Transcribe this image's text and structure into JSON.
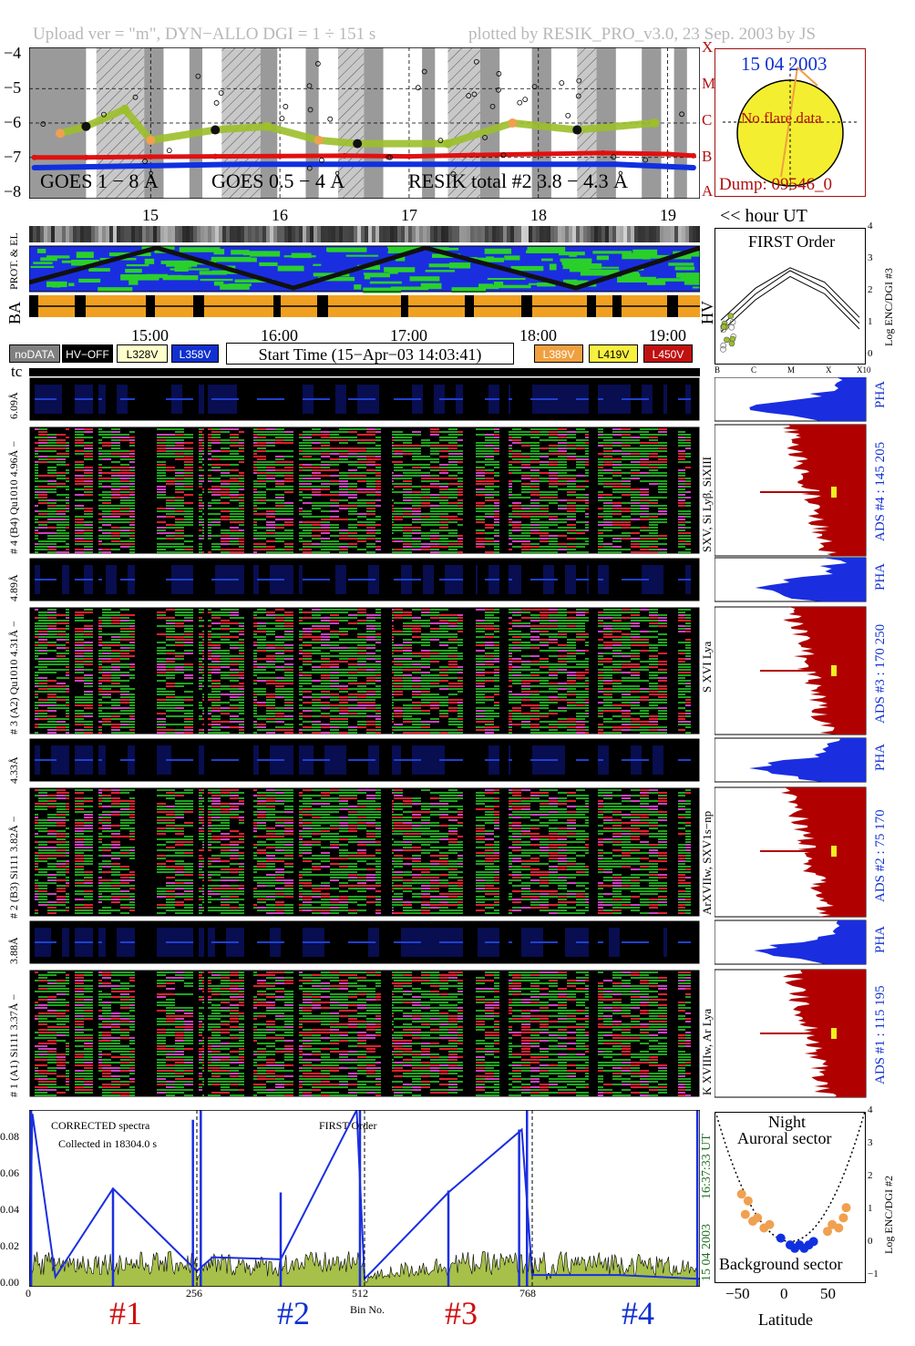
{
  "header": {
    "upload": "Upload ver = \"m\", DYN−ALLO DGI =  1 ÷ 151 s",
    "plotted": "plotted by RESIK_PRO_v3.0, 23 Sep. 2003 by JS"
  },
  "colors": {
    "goes_long": "#e01010",
    "goes_short": "#1030e0",
    "resik_green": "#9cbf2a",
    "resik_orange": "#f0a050",
    "gray_band": "#9a9a9a",
    "hatch_band": "#c8c8c8",
    "sun_fill": "#f4ee30",
    "spectrum_fill": "#a6c04a",
    "spectrum_blue": "#1a2ee0",
    "ads_red": "#b00000",
    "pha_blue": "#1a2ee0",
    "legend_nodata": "#808080",
    "legend_hvoff": "#000000",
    "legend_l328": "#ffffcc",
    "legend_l358": "#1030d0",
    "legend_l389": "#f0a040",
    "legend_l419": "#f8f040",
    "legend_l450": "#c01010"
  },
  "goes_panel": {
    "y_ticks": [
      "−4",
      "−5",
      "−6",
      "−7",
      "−8"
    ],
    "class_letters": [
      "X",
      "M",
      "C",
      "B",
      "A"
    ],
    "label_goes18": "GOES 1 − 8 Å",
    "label_goes05": "GOES 0.5 − 4 Å",
    "label_resik": "RESIK total #2  3.8 − 4.3 Å"
  },
  "sun_panel": {
    "date": "15 04 2003",
    "flare_text": "No flare data",
    "dump_text": "Dump: 09546_0"
  },
  "hour_axis": {
    "ticks": [
      "15",
      "16",
      "17",
      "18",
      "19"
    ],
    "label": "<< hour UT"
  },
  "orbit_panel": {
    "label_prot": "PROT. & EL",
    "label_ba": "BA"
  },
  "time_axis": {
    "ticks": [
      "15:00",
      "16:00",
      "17:00",
      "18:00",
      "19:00"
    ]
  },
  "hv_panel": {
    "label_hv": "HV",
    "title": "FIRST Order",
    "y_ticks": [
      "4",
      "3",
      "2",
      "1",
      "0"
    ],
    "y_label": "Log ENC/DGI #3",
    "x_ticks": [
      "B",
      "C",
      "M",
      "X",
      "X10"
    ]
  },
  "legend": {
    "nodata": "noDATA",
    "hvoff": "HV−OFF",
    "l328": "L328V",
    "l358": "L358V",
    "start_time": "Start Time (15−Apr−03 14:03:41)",
    "l389": "L389V",
    "l419": "L419V",
    "l450": "L450V"
  },
  "tc_label": "tc",
  "spectro": {
    "ch4_pha": "6.09Å",
    "ch4_label": "# 4 (B4) Qu1010 4.96Å −",
    "ch4_lines": "SXV, Si Lyβ, SiXIII",
    "ch4_ads": "ADS #4 :  145 205",
    "ch3_pha": "4.89Å",
    "ch3_label": "# 3 (A2) Qu1010 4.31Å −",
    "ch3_lines": "S XVI Lya",
    "ch3_ads": "ADS #3 :  170 250",
    "ch2_pha": "4.33Å",
    "ch2_label": "# 2 (B3) Si111 3.82Å −",
    "ch2_lines": "ArXVIIw, SXV1s−np",
    "ch2_ads": "ADS #2 :  75 170",
    "ch1_pha": "3.88Å",
    "ch1_label": "# 1 (A1) Si111 3.37Å −",
    "ch1_lines": "K XVIIIw, Ar Lya",
    "ch1_ads": "ADS #1 :  115 195",
    "pha": "PHA"
  },
  "spectrum_panel": {
    "corrected": "CORRECTED spectra",
    "collected": "Collected in 18304.0 s",
    "first_order": "FIRST Order",
    "y_ticks": [
      "0.08",
      "0.06",
      "0.04",
      "0.02",
      "0.00"
    ],
    "x_ticks": [
      "0",
      "256",
      "512",
      "768"
    ],
    "x_label": "Bin No.",
    "date_v": "15 04 2003",
    "time_v": "16:37:33 UT",
    "channels": [
      "#1",
      "#2",
      "#3",
      "#4"
    ],
    "channel_colors": [
      "#d01010",
      "#1030d0",
      "#d01010",
      "#1030d0"
    ]
  },
  "lat_panel": {
    "night": "Night",
    "auroral": "Auroral sector",
    "background": "Background sector",
    "x_ticks": [
      "−50",
      "0",
      "50"
    ],
    "x_label": "Latitude",
    "y_ticks": [
      "4",
      "3",
      "2",
      "1",
      "0",
      "−1"
    ],
    "y_label": "Log ENC/DGI #2"
  },
  "chart_data": [
    {
      "type": "line",
      "title": "",
      "ylabel": "",
      "ylim": [
        -8.2,
        -3.8
      ],
      "xlim_hours_ut": [
        14.06,
        19.25
      ],
      "series": [
        {
          "name": "GOES 1 − 8 Å",
          "x": [
            14.1,
            14.5,
            15.0,
            15.5,
            16.0,
            16.5,
            17.0,
            17.5,
            18.0,
            18.5,
            19.0,
            19.2
          ],
          "y": [
            -7.0,
            -7.0,
            -6.98,
            -6.97,
            -6.96,
            -6.95,
            -6.97,
            -6.93,
            -6.9,
            -6.87,
            -6.9,
            -6.95
          ]
        },
        {
          "name": "GOES 0.5 − 4 Å",
          "x": [
            14.1,
            15.7,
            17.0,
            18.6,
            19.2
          ],
          "y": [
            -7.3,
            -7.2,
            -7.2,
            -7.2,
            -7.3
          ]
        },
        {
          "name": "RESIK total #2  3.8 − 4.3 Å",
          "x": [
            14.3,
            14.5,
            14.8,
            15.0,
            15.5,
            15.9,
            16.3,
            16.6,
            17.3,
            17.8,
            18.3,
            18.9
          ],
          "y": [
            -6.3,
            -6.1,
            -5.6,
            -6.5,
            -6.2,
            -6.1,
            -6.5,
            -6.6,
            -6.6,
            -6.0,
            -6.2,
            -6.0
          ]
        }
      ]
    },
    {
      "type": "line",
      "title": "FIRST Order",
      "ylabel": "Log ENC/DGI #3",
      "ylim": [
        0,
        4
      ],
      "categories": [
        "B",
        "C",
        "M",
        "X",
        "X10"
      ],
      "series": [
        {
          "name": "upper",
          "values": [
            1.3,
            2.4,
            3.1,
            2.6,
            1.4
          ]
        },
        {
          "name": "middle",
          "values": [
            1.1,
            2.2,
            3.0,
            2.4,
            1.2
          ]
        },
        {
          "name": "lower",
          "values": [
            0.9,
            2.0,
            2.8,
            2.2,
            1.0
          ]
        }
      ]
    },
    {
      "type": "line",
      "title": "CORRECTED spectra",
      "xlabel": "Bin No.",
      "ylim": [
        0,
        0.09
      ],
      "xlim": [
        0,
        1024
      ],
      "series": [
        {
          "name": "spectrum",
          "x": [
            0,
            5,
            40,
            120,
            200,
            245,
            256,
            280,
            380,
            500,
            512,
            560,
            640,
            760,
            790,
            830,
            900,
            1000,
            1024
          ],
          "y": [
            0.0,
            0.085,
            0.012,
            0.014,
            0.012,
            0.08,
            0.005,
            0.012,
            0.01,
            0.07,
            0.004,
            0.008,
            0.011,
            0.07,
            0.004,
            0.02,
            0.012,
            0.01,
            0.005
          ]
        },
        {
          "name": "blue",
          "x": [
            0,
            5,
            40,
            128,
            256,
            280,
            384,
            500,
            512,
            640,
            752,
            768,
            800,
            900,
            1024
          ],
          "y": [
            0.005,
            0.088,
            0.005,
            0.05,
            0.008,
            0.015,
            0.014,
            0.09,
            0.004,
            0.048,
            0.08,
            0.006,
            0.006,
            0.006,
            0.004
          ]
        }
      ]
    },
    {
      "type": "scatter",
      "title": "Night",
      "xlabel": "Latitude",
      "ylabel": "Log ENC/DGI #2",
      "xlim": [
        -80,
        80
      ],
      "ylim": [
        -1,
        4
      ],
      "series": [
        {
          "name": "Auroral sector",
          "x": [
            -52,
            -48,
            -45,
            -40,
            -35,
            -28,
            -22,
            40,
            45,
            52,
            57,
            60
          ],
          "y": [
            1.6,
            1.0,
            1.4,
            0.8,
            0.9,
            0.6,
            0.7,
            0.5,
            0.7,
            0.6,
            0.9,
            1.2
          ]
        },
        {
          "name": "Background sector",
          "x": [
            -10,
            0,
            5,
            10,
            15,
            20,
            25
          ],
          "y": [
            0.3,
            0.1,
            0.0,
            0.1,
            0.0,
            0.1,
            0.2
          ]
        }
      ]
    }
  ]
}
